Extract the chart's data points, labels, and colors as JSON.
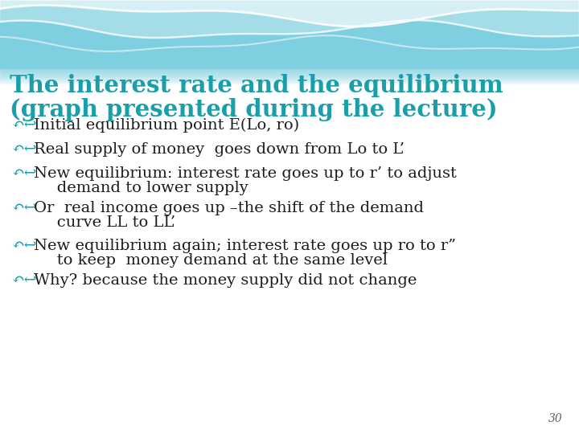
{
  "title_line1": "The interest rate and the equilibrium",
  "title_line2": "(graph presented during the lecture)",
  "title_color": "#1a9faa",
  "bullets": [
    [
      "Initial equilibrium point E(Lo, ro)"
    ],
    [
      "Real supply of money  goes down from Lo to L’"
    ],
    [
      "New equilibrium: interest rate goes up to r’ to adjust",
      "   demand to lower supply"
    ],
    [
      "Or  real income goes up –the shift of the demand",
      "   curve LL to LL’"
    ],
    [
      "New equilibrium again; interest rate goes up ro to r”",
      "   to keep  money demand at the same level"
    ],
    [
      "Why? because the money supply did not change"
    ]
  ],
  "bullet_color": "#1a9faa",
  "text_color": "#1c1c1c",
  "wave_bg_color": "#7ecfdf",
  "wave_line_color": "#ffffff",
  "page_number": "30",
  "fig_width": 7.2,
  "fig_height": 5.4,
  "dpi": 100,
  "title_fontsize": 21,
  "bullet_fontsize": 14,
  "bullet_sym": "↶↩"
}
